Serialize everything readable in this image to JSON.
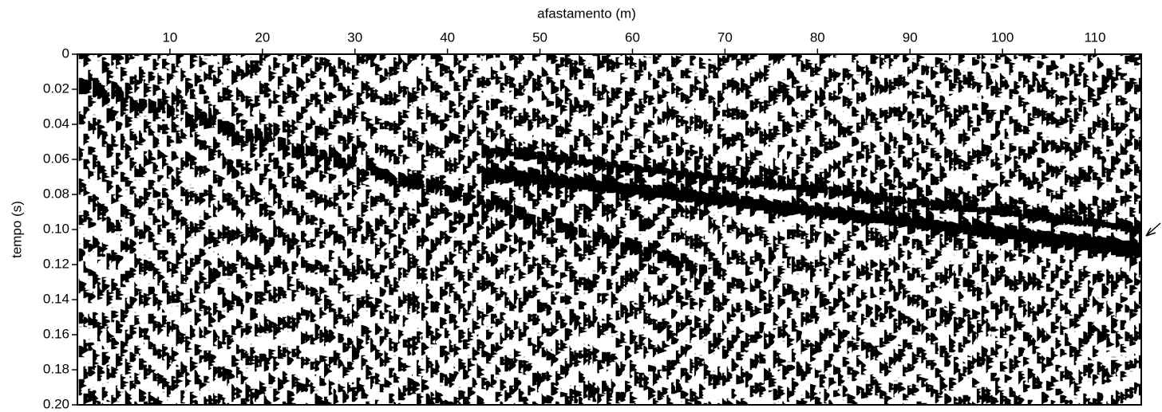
{
  "chart_data": {
    "type": "seismogram",
    "x_label": "afastamento (m)",
    "y_label": "tempo (s)",
    "xlim": [
      0,
      115
    ],
    "xticks": [
      10,
      20,
      30,
      40,
      50,
      60,
      70,
      80,
      90,
      100,
      110
    ],
    "ylim": [
      0,
      0.2
    ],
    "yticks": [
      0,
      0.02,
      0.04,
      0.06,
      0.08,
      {
        "value": 0.1,
        "label": "0.10"
      },
      0.12,
      0.14,
      0.16,
      0.18,
      {
        "value": 0.2,
        "label": "0.20"
      }
    ],
    "y_inverted": true,
    "x_axis_position": "top",
    "color": "#000000"
  }
}
